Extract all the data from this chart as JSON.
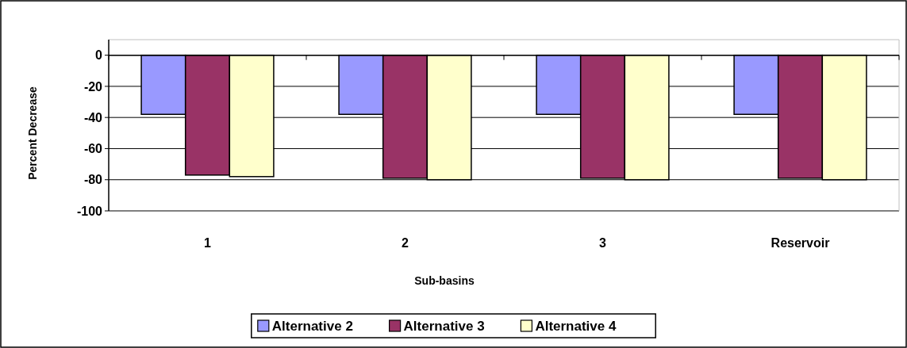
{
  "chart_data": {
    "type": "bar",
    "xlabel": "Sub-basins",
    "ylabel": "Percent Decrease",
    "categories": [
      "1",
      "2",
      "3",
      "Reservoir"
    ],
    "series": [
      {
        "name": "Alternative 2",
        "color": "#9999ff",
        "values": [
          -38,
          -38,
          -38,
          -38
        ]
      },
      {
        "name": "Alternative 3",
        "color": "#993366",
        "values": [
          -77,
          -79,
          -79,
          -79
        ]
      },
      {
        "name": "Alternative 4",
        "color": "#ffffcc",
        "values": [
          -78,
          -80,
          -80,
          -80
        ]
      }
    ],
    "ylim": [
      -100,
      10
    ],
    "yticks": [
      0,
      -20,
      -40,
      -60,
      -80,
      -100
    ],
    "grid": "y",
    "legend": "bottom"
  }
}
